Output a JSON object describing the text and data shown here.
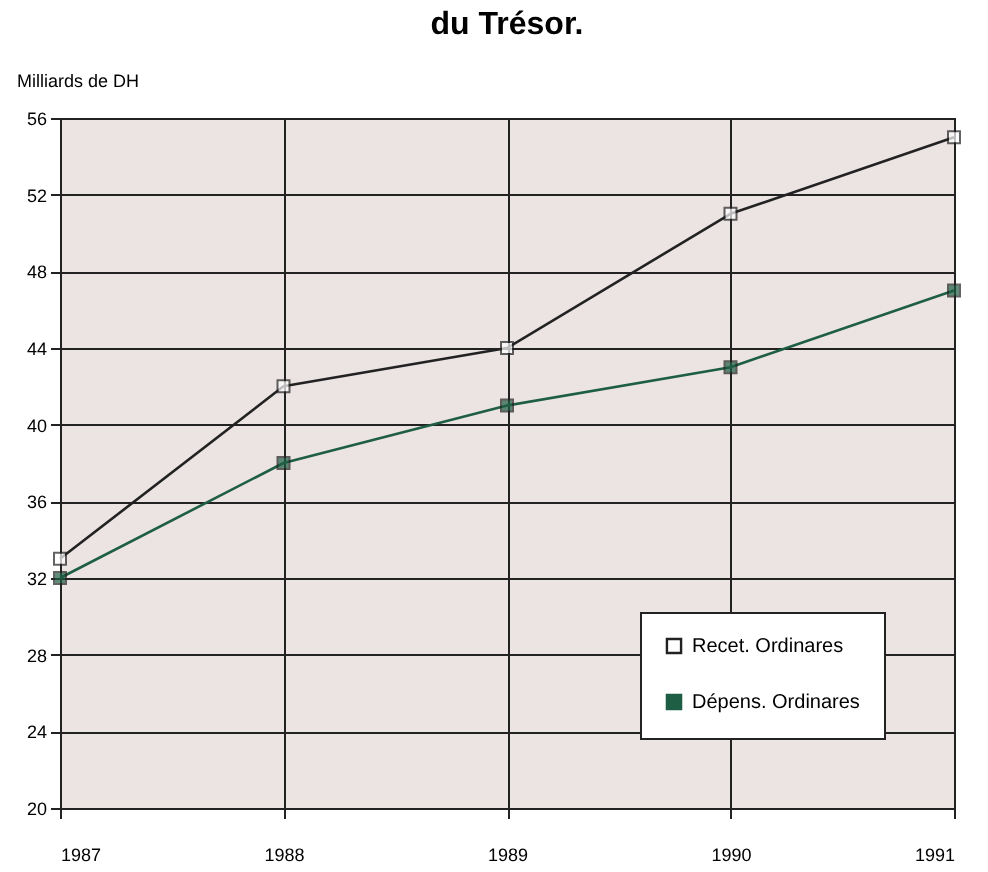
{
  "chart_data": {
    "type": "line",
    "title": "du Trésor.",
    "ylabel": "Milliards de DH",
    "categories": [
      "1987",
      "1988",
      "1989",
      "1990",
      "1991"
    ],
    "series": [
      {
        "name": "Recet. Ordinares",
        "color": "#222222",
        "values": [
          33,
          42,
          44,
          51,
          55
        ]
      },
      {
        "name": "Dépens. Ordinares",
        "color": "#1d5e44",
        "values": [
          32,
          38,
          41,
          43,
          47
        ]
      }
    ],
    "ylim": [
      20,
      56
    ],
    "yticks": [
      20,
      24,
      28,
      32,
      36,
      40,
      44,
      48,
      52,
      56
    ],
    "grid": true,
    "legend": "bottom right",
    "marker": "square"
  }
}
